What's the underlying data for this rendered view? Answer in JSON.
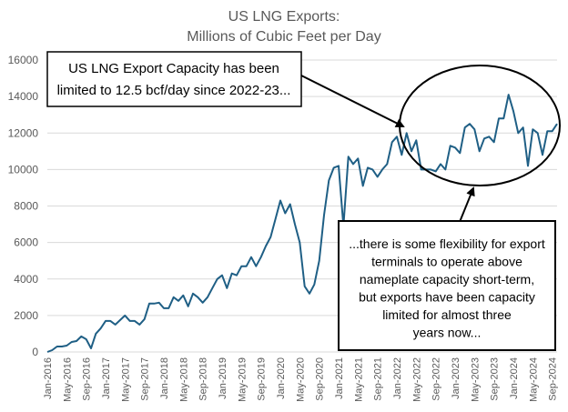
{
  "chart_data": {
    "type": "line",
    "title": "US LNG Exports:",
    "subtitle": "Millions of Cubic Feet per Day",
    "xlabel": "",
    "ylabel": "",
    "ylim": [
      0,
      16000
    ],
    "yticks": [
      "0",
      "2000",
      "4000",
      "6000",
      "8000",
      "10000",
      "12000",
      "14000",
      "16000"
    ],
    "ytick_values": [
      0,
      2000,
      4000,
      6000,
      8000,
      10000,
      12000,
      14000,
      16000
    ],
    "x_start": "Jan-2016",
    "x_tick_labels": [
      "Jan-2016",
      "May-2016",
      "Sep-2016",
      "Jan-2017",
      "May-2017",
      "Sep-2017",
      "Jan-2018",
      "May-2018",
      "Sep-2018",
      "Jan-2019",
      "May-2019",
      "Sep-2019",
      "Jan-2020",
      "May-2020",
      "Sep-2020",
      "Jan-2021",
      "May-2021",
      "Sep-2021",
      "Jan-2022",
      "May-2022",
      "Sep-2022",
      "Jan-2023",
      "May-2023",
      "Sep-2023",
      "Jan-2024",
      "May-2024",
      "Sep-2024"
    ],
    "grid": "horizontal",
    "line_color": "#1f5f85",
    "series": [
      {
        "name": "",
        "values": [
          0,
          100,
          300,
          300,
          350,
          550,
          600,
          850,
          700,
          200,
          1000,
          1300,
          1700,
          1700,
          1500,
          1750,
          2000,
          1700,
          1700,
          1500,
          1800,
          2650,
          2650,
          2700,
          2400,
          2400,
          3000,
          2800,
          3100,
          2500,
          3200,
          3000,
          2700,
          3000,
          3500,
          4000,
          4200,
          3500,
          4300,
          4200,
          4700,
          4700,
          5200,
          4700,
          5200,
          5800,
          6300,
          7300,
          8300,
          7600,
          8100,
          7000,
          6000,
          3600,
          3200,
          3700,
          5000,
          7500,
          9400,
          10100,
          10200,
          6900,
          10700,
          10300,
          10600,
          9100,
          10100,
          10000,
          9600,
          10000,
          10300,
          11500,
          11800,
          10800,
          12000,
          11000,
          11600,
          10000,
          10000,
          10000,
          9900,
          10300,
          10000,
          11300,
          11200,
          10900,
          12300,
          12500,
          12200,
          11000,
          11700,
          11800,
          11500,
          12800,
          12800,
          14100,
          13200,
          12000,
          12300,
          10200,
          12200,
          12000,
          10800,
          12100,
          12100,
          12500
        ]
      }
    ]
  },
  "annotations": {
    "capacity_note": "US LNG Export Capacity has been limited to 12.5 bcf/day since 2022-23...",
    "capacity_lines": [
      "US LNG Export Capacity has been",
      "limited to 12.5 bcf/day since 2022-23..."
    ],
    "flex_note": "...there is some flexibility for export terminals to operate above nameplate capacity short-term, but exports have been capacity limited for almost three years now...",
    "flex_lines": [
      "...there is some flexibility for export",
      "terminals to operate above",
      "nameplate capacity short-term,",
      "but exports have been capacity",
      "limited for almost three",
      "years now..."
    ]
  },
  "colors": {
    "axis_text": "#595959",
    "grid": "#d9d9d9",
    "annotation_border": "#000000"
  }
}
